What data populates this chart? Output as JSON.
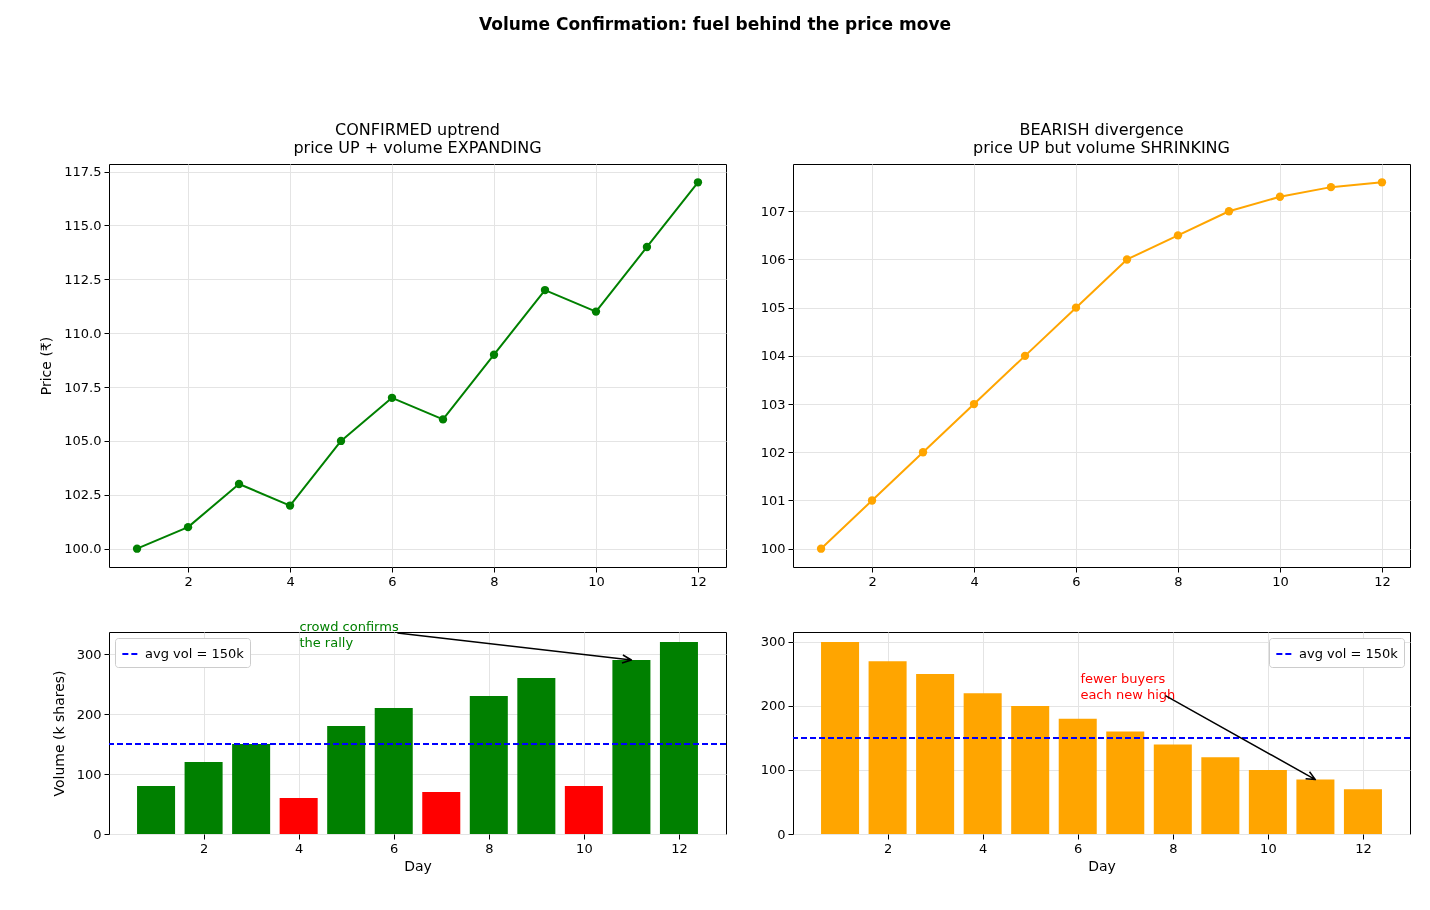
{
  "chart_data": [
    {
      "type": "other",
      "title": "Volume Confirmation: fuel behind the price move"
    },
    {
      "type": "line",
      "title": "CONFIRMED uptrend\nprice UP + volume EXPANDING",
      "ylabel": "Price (₹)",
      "x": [
        1,
        2,
        3,
        4,
        5,
        6,
        7,
        8,
        9,
        10,
        11,
        12
      ],
      "values": [
        100,
        101,
        103,
        102,
        105,
        107,
        106,
        109,
        112,
        111,
        114,
        117
      ],
      "color": "#008000",
      "marker": "circle",
      "xlim": [
        0.45,
        12.55
      ],
      "xticks": [
        2,
        4,
        6,
        8,
        10,
        12
      ],
      "ylim": [
        99.15,
        117.85
      ],
      "yticks": [
        {
          "value": 100,
          "label": "100.0"
        },
        {
          "value": 102.5,
          "label": "102.5"
        },
        {
          "value": 105,
          "label": "105.0"
        },
        {
          "value": 107.5,
          "label": "107.5"
        },
        {
          "value": 110,
          "label": "110.0"
        },
        {
          "value": 112.5,
          "label": "112.5"
        },
        {
          "value": 115,
          "label": "115.0"
        },
        {
          "value": 117.5,
          "label": "117.5"
        }
      ],
      "grid": true
    },
    {
      "type": "line",
      "title": "BEARISH divergence\nprice UP but volume SHRINKING",
      "x": [
        1,
        2,
        3,
        4,
        5,
        6,
        7,
        8,
        9,
        10,
        11,
        12
      ],
      "values": [
        100,
        101,
        102,
        103,
        104,
        105,
        106,
        106.5,
        107,
        107.3,
        107.5,
        107.6
      ],
      "color": "#ffa500",
      "marker": "circle",
      "xlim": [
        0.45,
        12.55
      ],
      "xticks": [
        2,
        4,
        6,
        8,
        10,
        12
      ],
      "ylim": [
        99.62,
        107.98
      ],
      "yticks": [
        100,
        101,
        102,
        103,
        104,
        105,
        106,
        107
      ],
      "grid": true
    },
    {
      "type": "bar",
      "xlabel": "Day",
      "ylabel": "Volume (k shares)",
      "x": [
        1,
        2,
        3,
        4,
        5,
        6,
        7,
        8,
        9,
        10,
        11,
        12
      ],
      "values": [
        80,
        120,
        150,
        60,
        180,
        210,
        70,
        230,
        260,
        80,
        290,
        320
      ],
      "colors": [
        "#008000",
        "#008000",
        "#008000",
        "#ff0000",
        "#008000",
        "#008000",
        "#ff0000",
        "#008000",
        "#008000",
        "#ff0000",
        "#008000",
        "#008000"
      ],
      "xlim": [
        0.01,
        12.99
      ],
      "xticks": [
        2,
        4,
        6,
        8,
        10,
        12
      ],
      "ylim": [
        0,
        336.7
      ],
      "yticks": [
        0,
        100,
        200,
        300
      ],
      "grid": true,
      "legend": "top left",
      "ref_lines": [
        {
          "axis": "y",
          "value": 150,
          "label": "avg vol = 150k",
          "color": "#0000ff",
          "line_style": "dashed"
        }
      ],
      "annotations": [
        {
          "text": "crowd confirms\nthe rally",
          "x": 11,
          "y": 290
        }
      ]
    },
    {
      "type": "bar",
      "xlabel": "Day",
      "x": [
        1,
        2,
        3,
        4,
        5,
        6,
        7,
        8,
        9,
        10,
        11,
        12
      ],
      "values": [
        300,
        270,
        250,
        220,
        200,
        180,
        160,
        140,
        120,
        100,
        85,
        70
      ],
      "color": "#ffa500",
      "xlim": [
        0.01,
        12.99
      ],
      "xticks": [
        2,
        4,
        6,
        8,
        10,
        12
      ],
      "ylim": [
        0,
        315.6
      ],
      "yticks": [
        0,
        100,
        200,
        300
      ],
      "grid": true,
      "legend": "top right",
      "ref_lines": [
        {
          "axis": "y",
          "value": 150,
          "label": "avg vol = 150k",
          "color": "#0000ff",
          "line_style": "dashed"
        }
      ],
      "annotations": [
        {
          "text": "fewer buyers\neach new high",
          "x": 11,
          "y": 85
        }
      ]
    }
  ]
}
